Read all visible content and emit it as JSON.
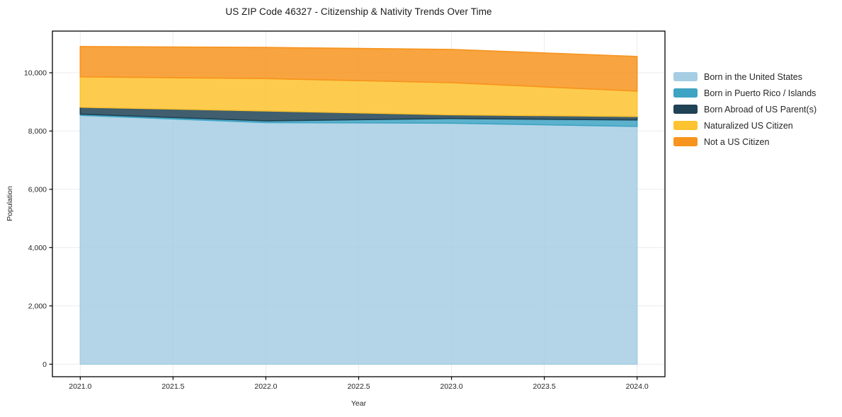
{
  "chart_data": {
    "type": "area",
    "stacked": true,
    "title": "US ZIP Code 46327 - Citizenship & Nativity Trends Over Time",
    "xlabel": "Year",
    "ylabel": "Population",
    "x": [
      2021,
      2022,
      2023,
      2024
    ],
    "series": [
      {
        "name": "Born in the United States",
        "color": "#a6cee3",
        "values": [
          8540,
          8290,
          8270,
          8160
        ]
      },
      {
        "name": "Born in Puerto Rico / Islands",
        "color": "#3fa4c4",
        "values": [
          40,
          60,
          160,
          220
        ]
      },
      {
        "name": "Born Abroad of US Parent(s)",
        "color": "#1f4254",
        "values": [
          240,
          340,
          130,
          120
        ]
      },
      {
        "name": "Naturalized US Citizen",
        "color": "#fdc330",
        "values": [
          1040,
          1110,
          1100,
          870
        ]
      },
      {
        "name": "Not a US Citizen",
        "color": "#f7941e",
        "values": [
          1040,
          1070,
          1140,
          1190
        ]
      }
    ],
    "totals": [
      10900,
      10870,
      10800,
      10560
    ],
    "x_ticks": [
      2021.0,
      2021.5,
      2022.0,
      2022.5,
      2023.0,
      2023.5,
      2024.0
    ],
    "x_tick_labels": [
      "2021.0",
      "2021.5",
      "2022.0",
      "2022.5",
      "2023.0",
      "2023.5",
      "2024.0"
    ],
    "y_ticks": [
      0,
      2000,
      4000,
      6000,
      8000,
      10000
    ],
    "y_tick_labels": [
      "0",
      "2,000",
      "4,000",
      "6,000",
      "8,000",
      "10,000"
    ],
    "xlim": [
      2020.85,
      2024.15
    ],
    "ylim": [
      -430,
      11430
    ],
    "grid": true,
    "grid_color": "#ebebeb",
    "axis_color": "#000000",
    "legend_position": "right",
    "fill_opacity": 0.85
  }
}
